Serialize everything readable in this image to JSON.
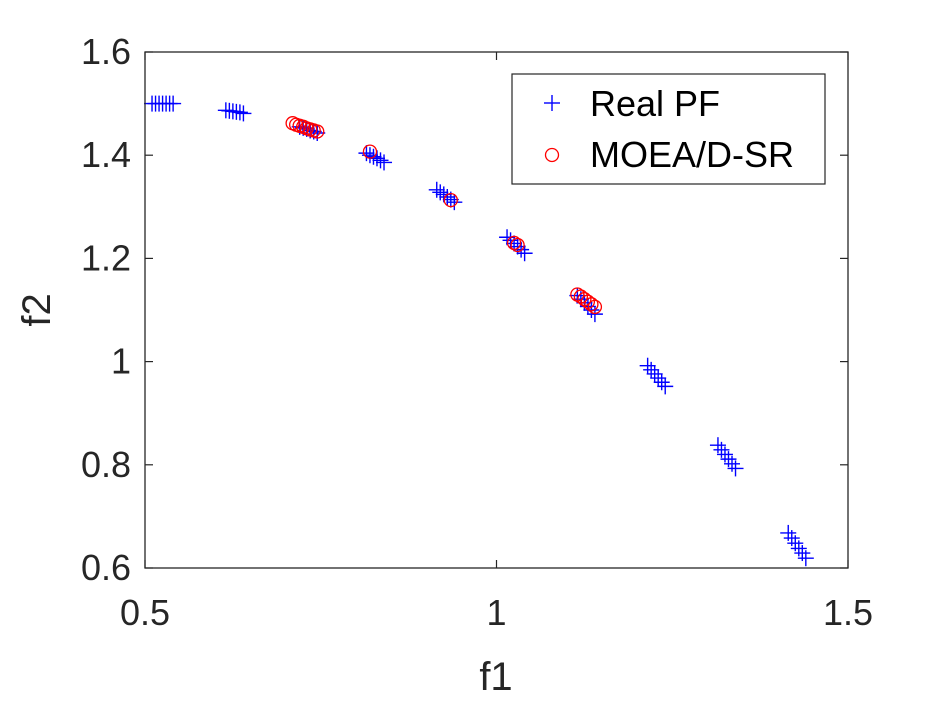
{
  "chart_data": {
    "type": "scatter",
    "title": "",
    "xlabel": "f1",
    "ylabel": "f2",
    "xlim": [
      0.5,
      1.5
    ],
    "ylim": [
      0.6,
      1.6
    ],
    "xticks": [
      0.5,
      1,
      1.5
    ],
    "xtick_labels": [
      "0.5",
      "1",
      "1.5"
    ],
    "yticks": [
      0.6,
      0.8,
      1.0,
      1.2,
      1.4,
      1.6
    ],
    "ytick_labels": [
      "0.6",
      "0.8",
      "1",
      "1.2",
      "1.4",
      "1.6"
    ],
    "grid": false,
    "legend_position": "top-right",
    "series": [
      {
        "name": "Real PF",
        "marker": "plus",
        "color": "#0000ff",
        "points": [
          [
            0.51,
            1.5
          ],
          [
            0.515,
            1.5
          ],
          [
            0.52,
            1.5
          ],
          [
            0.525,
            1.5
          ],
          [
            0.53,
            1.5
          ],
          [
            0.535,
            1.5
          ],
          [
            0.54,
            1.5
          ],
          [
            0.615,
            1.487
          ],
          [
            0.62,
            1.486
          ],
          [
            0.625,
            1.485
          ],
          [
            0.63,
            1.484
          ],
          [
            0.635,
            1.483
          ],
          [
            0.64,
            1.481
          ],
          [
            0.72,
            1.455
          ],
          [
            0.725,
            1.453
          ],
          [
            0.73,
            1.451
          ],
          [
            0.735,
            1.448
          ],
          [
            0.74,
            1.446
          ],
          [
            0.745,
            1.443
          ],
          [
            0.815,
            1.404
          ],
          [
            0.82,
            1.4
          ],
          [
            0.825,
            1.397
          ],
          [
            0.83,
            1.394
          ],
          [
            0.835,
            1.39
          ],
          [
            0.84,
            1.386
          ],
          [
            0.915,
            1.333
          ],
          [
            0.92,
            1.328
          ],
          [
            0.925,
            1.324
          ],
          [
            0.93,
            1.319
          ],
          [
            0.935,
            1.314
          ],
          [
            0.94,
            1.309
          ],
          [
            1.015,
            1.241
          ],
          [
            1.02,
            1.235
          ],
          [
            1.025,
            1.229
          ],
          [
            1.03,
            1.223
          ],
          [
            1.035,
            1.217
          ],
          [
            1.04,
            1.21
          ],
          [
            1.115,
            1.128
          ],
          [
            1.12,
            1.121
          ],
          [
            1.125,
            1.114
          ],
          [
            1.13,
            1.107
          ],
          [
            1.135,
            1.1
          ],
          [
            1.14,
            1.092
          ],
          [
            1.215,
            0.992
          ],
          [
            1.22,
            0.984
          ],
          [
            1.225,
            0.976
          ],
          [
            1.23,
            0.968
          ],
          [
            1.235,
            0.96
          ],
          [
            1.24,
            0.952
          ],
          [
            1.315,
            0.838
          ],
          [
            1.32,
            0.829
          ],
          [
            1.325,
            0.82
          ],
          [
            1.33,
            0.811
          ],
          [
            1.335,
            0.802
          ],
          [
            1.34,
            0.793
          ],
          [
            1.415,
            0.668
          ],
          [
            1.42,
            0.658
          ],
          [
            1.425,
            0.648
          ],
          [
            1.43,
            0.638
          ],
          [
            1.435,
            0.629
          ],
          [
            1.44,
            0.619
          ]
        ]
      },
      {
        "name": "MOEA/D-SR",
        "marker": "circle",
        "color": "#ff0000",
        "points": [
          [
            0.71,
            1.462
          ],
          [
            0.715,
            1.459
          ],
          [
            0.72,
            1.457
          ],
          [
            0.725,
            1.455
          ],
          [
            0.73,
            1.452
          ],
          [
            0.735,
            1.45
          ],
          [
            0.74,
            1.448
          ],
          [
            0.745,
            1.446
          ],
          [
            0.82,
            1.407
          ],
          [
            0.935,
            1.313
          ],
          [
            1.025,
            1.23
          ],
          [
            1.03,
            1.226
          ],
          [
            1.115,
            1.13
          ],
          [
            1.12,
            1.126
          ],
          [
            1.125,
            1.121
          ],
          [
            1.13,
            1.116
          ],
          [
            1.135,
            1.111
          ],
          [
            1.14,
            1.106
          ]
        ]
      }
    ]
  }
}
